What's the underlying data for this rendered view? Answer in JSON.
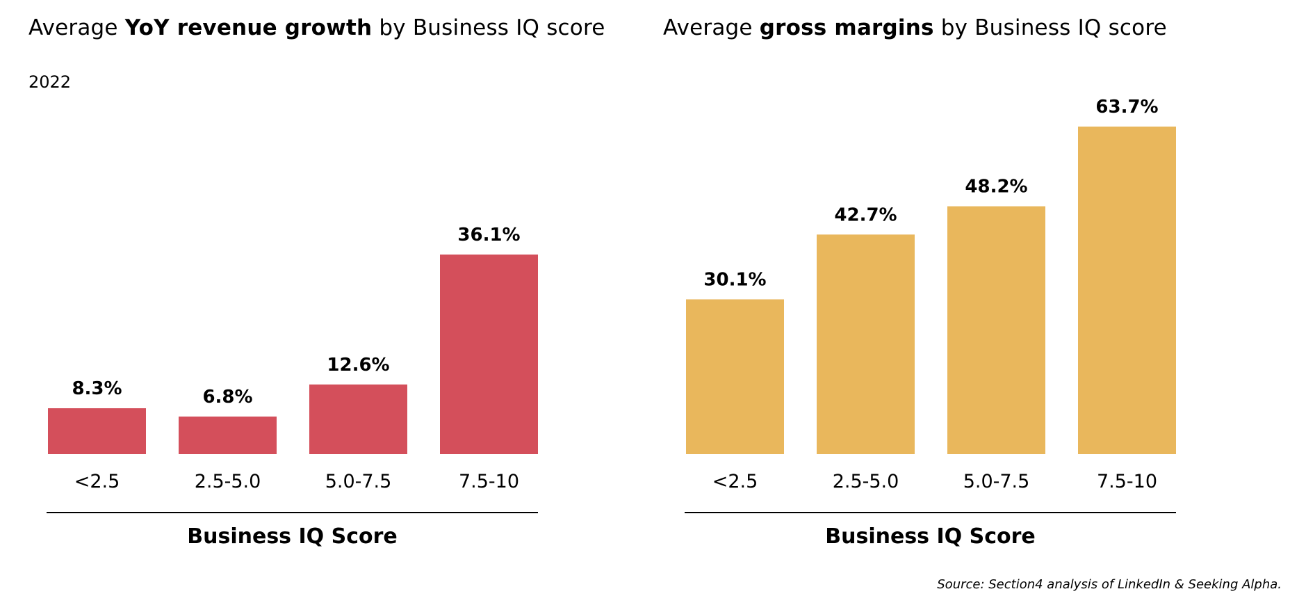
{
  "charts": [
    {
      "title_pre": "Average ",
      "title_bold": "YoY revenue growth",
      "title_post": " by Business IQ score",
      "subtitle": "2022"
    },
    {
      "title_pre": "Average ",
      "title_bold": "gross margins",
      "title_post": " by Business IQ score",
      "subtitle": ""
    }
  ],
  "source": "Source: Section4 analysis of LinkedIn & Seeking Alpha.",
  "chart_data": [
    {
      "type": "bar",
      "title": "Average YoY revenue growth by Business IQ score",
      "subtitle": "2022",
      "categories": [
        "<2.5",
        "2.5-5.0",
        "5.0-7.5",
        "7.5-10"
      ],
      "values": [
        8.3,
        6.8,
        12.6,
        36.1
      ],
      "value_labels": [
        "8.3%",
        "6.8%",
        "12.6%",
        "36.1%"
      ],
      "xlabel": "Business IQ Score",
      "ylabel": "",
      "ylim": [
        0,
        40
      ],
      "grid": false,
      "legend": "none",
      "color": "#d44f5b"
    },
    {
      "type": "bar",
      "title": "Average gross margins by Business IQ score",
      "categories": [
        "<2.5",
        "2.5-5.0",
        "5.0-7.5",
        "7.5-10"
      ],
      "values": [
        30.1,
        42.7,
        48.2,
        63.7
      ],
      "value_labels": [
        "30.1%",
        "42.7%",
        "48.2%",
        "63.7%"
      ],
      "xlabel": "Business IQ Score",
      "ylabel": "",
      "ylim": [
        0,
        70
      ],
      "grid": false,
      "legend": "none",
      "color": "#e9b75c"
    }
  ]
}
